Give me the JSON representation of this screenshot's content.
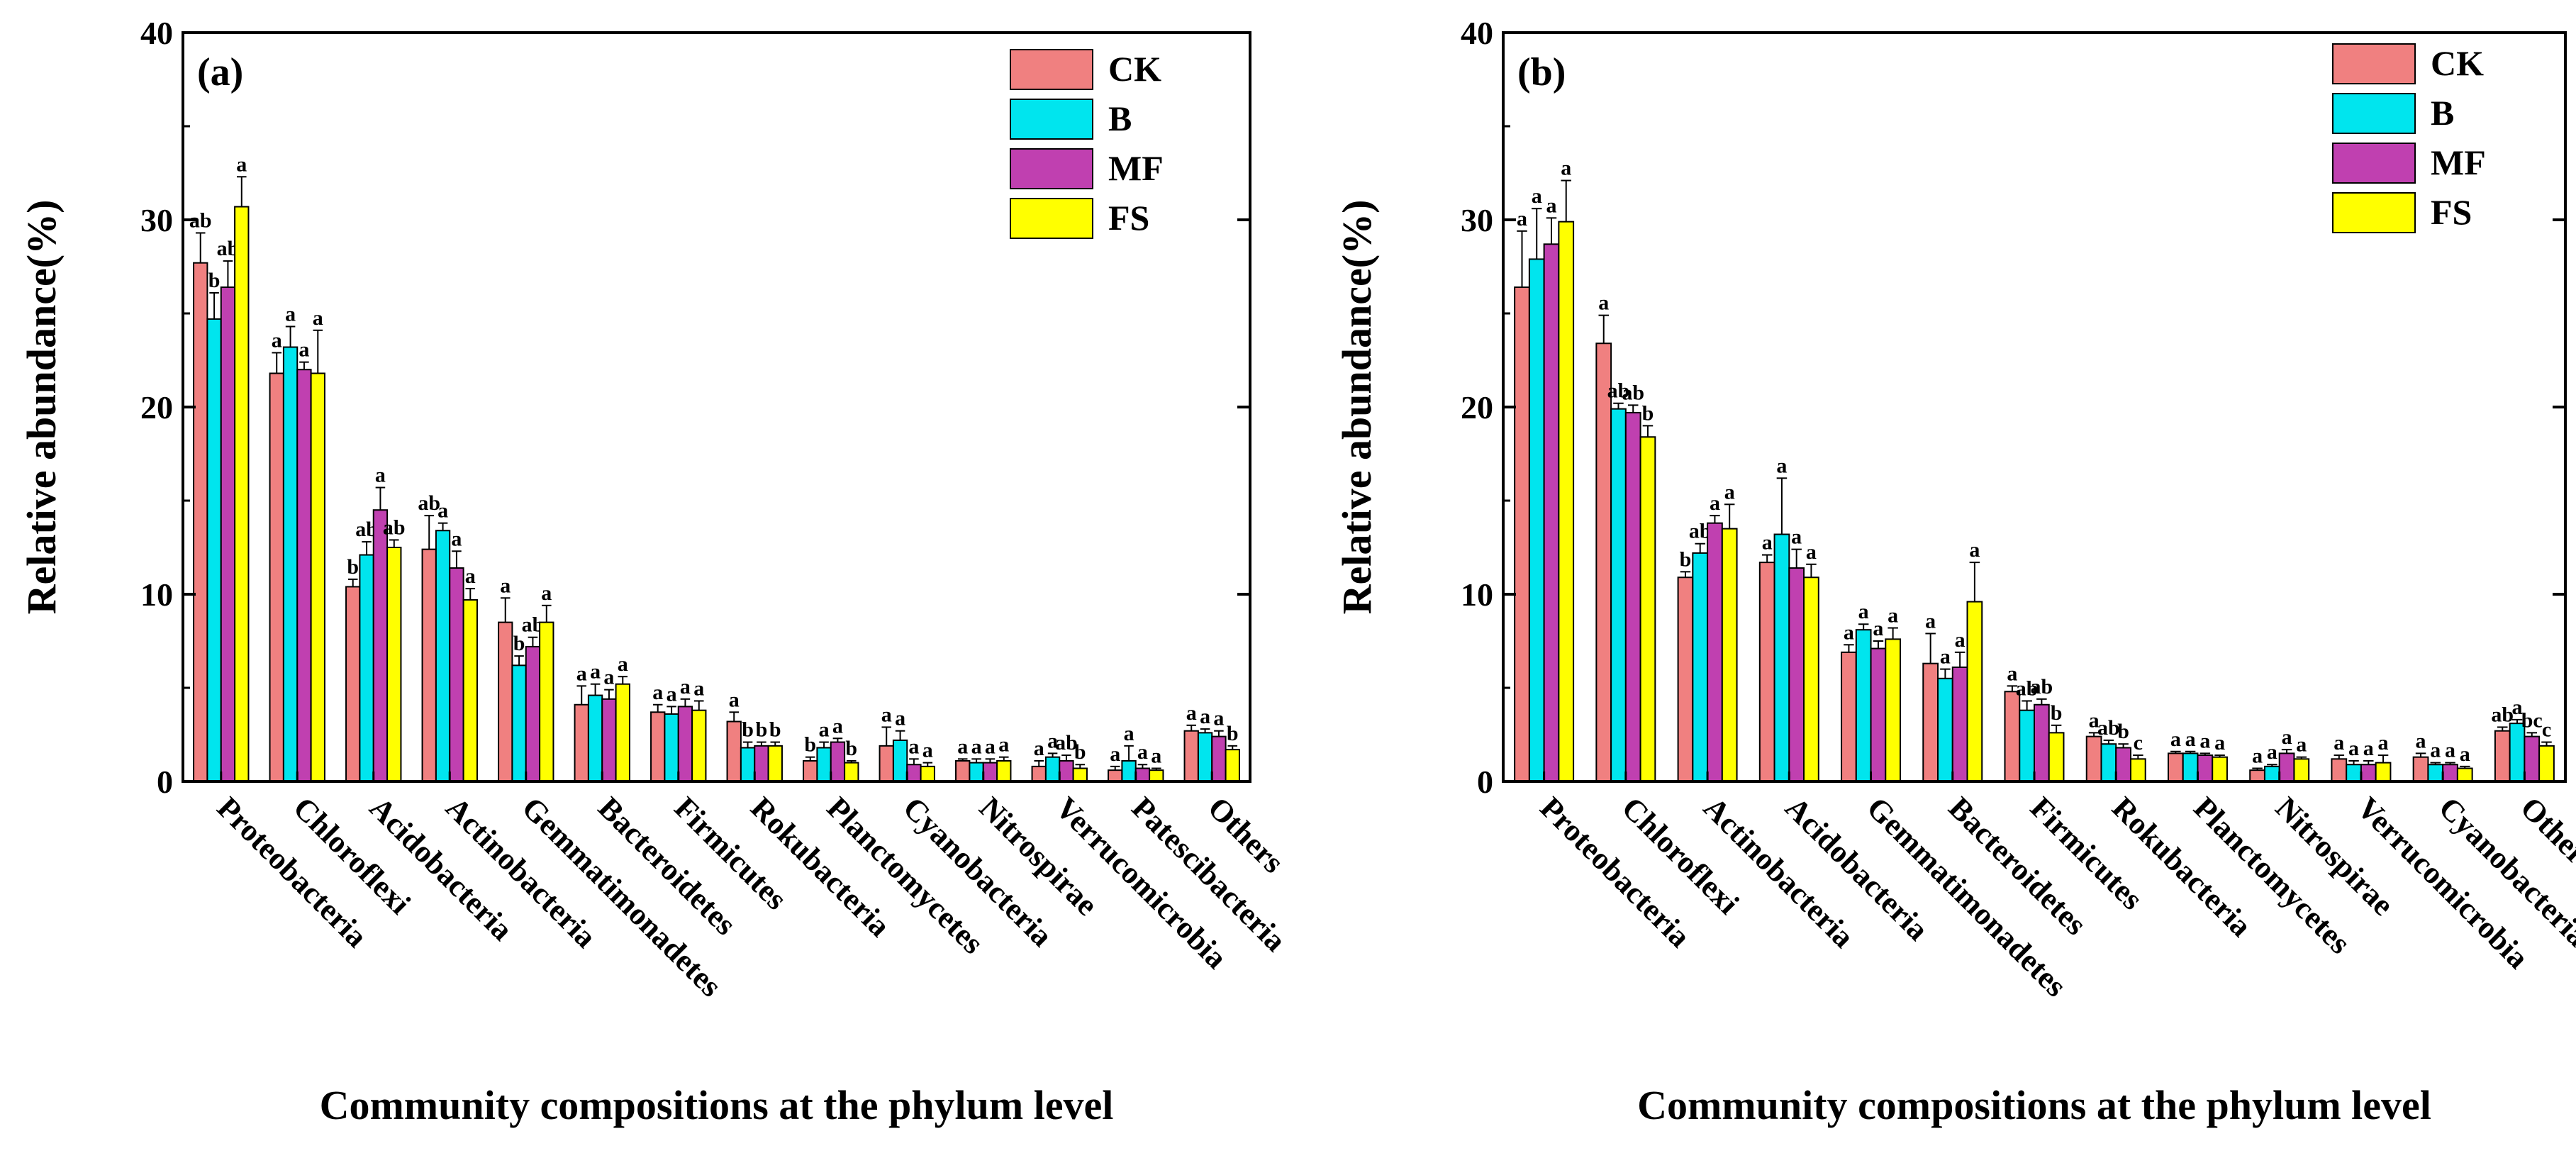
{
  "colors": {
    "CK": "#f08080",
    "B": "#00e5ee",
    "MF": "#c040b0",
    "FS": "#ffff00",
    "axis": "#000000"
  },
  "chart_data": [
    {
      "type": "bar",
      "panel_label": "(a)",
      "xlabel": "Community compositions at the phylum level",
      "ylabel": "Relative abundance(%)",
      "ylim": [
        0,
        40
      ],
      "yticks": [
        0,
        10,
        20,
        30,
        40
      ],
      "grid": false,
      "legend_position": "top-right",
      "categories": [
        "Proteobacteria",
        "Chloroflexi",
        "Acidobacteria",
        "Actinobacteria",
        "Gemmatimonadetes",
        "Bacteroidetes",
        "Firmicutes",
        "Rokubacteria",
        "Planctomycetes",
        "Cyanobacteria",
        "Nitrospirae",
        "Verrucomicrobia",
        "Patescibacteria",
        "Others"
      ],
      "series": [
        {
          "name": "CK",
          "values": [
            27.7,
            21.8,
            10.4,
            12.4,
            8.5,
            4.1,
            3.7,
            3.2,
            1.1,
            1.9,
            1.1,
            0.8,
            0.6,
            2.7
          ],
          "errors": [
            1.6,
            1.1,
            0.4,
            1.8,
            1.3,
            1.0,
            0.4,
            0.5,
            0.2,
            1.0,
            0.1,
            0.3,
            0.2,
            0.3
          ],
          "letters": [
            "ab",
            "a",
            "b",
            "ab",
            "a",
            "a",
            "a",
            "a",
            "b",
            "a",
            "a",
            "a",
            "a",
            "a"
          ]
        },
        {
          "name": "B",
          "values": [
            24.7,
            23.2,
            12.1,
            13.4,
            6.2,
            4.6,
            3.6,
            1.8,
            1.8,
            2.2,
            1.0,
            1.3,
            1.1,
            2.6
          ],
          "errors": [
            1.4,
            1.1,
            0.7,
            0.4,
            0.5,
            0.6,
            0.4,
            0.3,
            0.3,
            0.5,
            0.2,
            0.2,
            0.8,
            0.2
          ],
          "letters": [
            "b",
            "a",
            "ab",
            "a",
            "b",
            "a",
            "a",
            "b",
            "a",
            "a",
            "a",
            "a",
            "a",
            "a"
          ]
        },
        {
          "name": "MF",
          "values": [
            26.4,
            22.0,
            14.5,
            11.4,
            7.2,
            4.4,
            4.0,
            1.9,
            2.1,
            0.9,
            1.0,
            1.1,
            0.7,
            2.4
          ],
          "errors": [
            1.4,
            0.4,
            1.2,
            0.9,
            0.5,
            0.5,
            0.4,
            0.2,
            0.2,
            0.3,
            0.2,
            0.3,
            0.2,
            0.3
          ],
          "letters": [
            "ab",
            "a",
            "a",
            "a",
            "ab",
            "a",
            "a",
            "b",
            "a",
            "a",
            "a",
            "ab",
            "a",
            "a"
          ]
        },
        {
          "name": "FS",
          "values": [
            30.7,
            21.8,
            12.5,
            9.7,
            8.5,
            5.2,
            3.8,
            1.9,
            1.0,
            0.8,
            1.1,
            0.7,
            0.6,
            1.7
          ],
          "errors": [
            1.6,
            2.3,
            0.4,
            0.6,
            0.9,
            0.4,
            0.5,
            0.2,
            0.1,
            0.2,
            0.2,
            0.2,
            0.1,
            0.2
          ],
          "letters": [
            "a",
            "a",
            "ab",
            "a",
            "a",
            "a",
            "a",
            "b",
            "b",
            "a",
            "a",
            "b",
            "a",
            "b"
          ]
        }
      ]
    },
    {
      "type": "bar",
      "panel_label": "(b)",
      "xlabel": "Community compositions at the phylum level",
      "ylabel": "Relative abundance(%)",
      "ylim": [
        0,
        40
      ],
      "yticks": [
        0,
        10,
        20,
        30,
        40
      ],
      "grid": false,
      "legend_position": "top-right",
      "categories": [
        "Proteobacteria",
        "Chloroflexi",
        "Actinobacteria",
        "Acidobacteria",
        "Gemmatimonadetes",
        "Bacteroidetes",
        "Firmicutes",
        "Rokubacteria",
        "Planctomycetes",
        "Nitrospirae",
        "Verrucomicrobia",
        "Cyanobacteria",
        "Others"
      ],
      "series": [
        {
          "name": "CK",
          "values": [
            26.4,
            23.4,
            10.9,
            11.7,
            6.9,
            6.3,
            4.8,
            2.4,
            1.5,
            0.6,
            1.2,
            1.3,
            2.7
          ],
          "errors": [
            3.0,
            1.5,
            0.3,
            0.4,
            0.4,
            1.6,
            0.3,
            0.2,
            0.1,
            0.1,
            0.2,
            0.2,
            0.2
          ],
          "letters": [
            "a",
            "a",
            "b",
            "a",
            "a",
            "a",
            "a",
            "a",
            "a",
            "a",
            "a",
            "a",
            "ab"
          ]
        },
        {
          "name": "B",
          "values": [
            27.9,
            19.9,
            12.2,
            13.2,
            8.1,
            5.5,
            3.8,
            2.0,
            1.5,
            0.8,
            0.9,
            0.9,
            3.1
          ],
          "errors": [
            2.7,
            0.3,
            0.5,
            3.0,
            0.3,
            0.5,
            0.5,
            0.2,
            0.1,
            0.1,
            0.2,
            0.1,
            0.2
          ],
          "letters": [
            "a",
            "ab",
            "ab",
            "a",
            "a",
            "a",
            "ab",
            "ab",
            "a",
            "a",
            "a",
            "a",
            "a"
          ]
        },
        {
          "name": "MF",
          "values": [
            28.7,
            19.7,
            13.8,
            11.4,
            7.1,
            6.1,
            4.1,
            1.8,
            1.4,
            1.5,
            0.9,
            0.9,
            2.4
          ],
          "errors": [
            1.4,
            0.4,
            0.4,
            1.0,
            0.4,
            0.8,
            0.3,
            0.2,
            0.1,
            0.2,
            0.2,
            0.1,
            0.2
          ],
          "letters": [
            "a",
            "ab",
            "a",
            "a",
            "a",
            "a",
            "ab",
            "b",
            "a",
            "a",
            "a",
            "a",
            "bc"
          ]
        },
        {
          "name": "FS",
          "values": [
            29.9,
            18.4,
            13.5,
            10.9,
            7.6,
            9.6,
            2.6,
            1.2,
            1.3,
            1.2,
            1.0,
            0.7,
            1.9
          ],
          "errors": [
            2.2,
            0.6,
            1.3,
            0.7,
            0.6,
            2.1,
            0.4,
            0.2,
            0.1,
            0.1,
            0.4,
            0.1,
            0.2
          ],
          "letters": [
            "a",
            "b",
            "a",
            "a",
            "a",
            "a",
            "b",
            "c",
            "a",
            "a",
            "a",
            "a",
            "c"
          ]
        }
      ]
    }
  ]
}
